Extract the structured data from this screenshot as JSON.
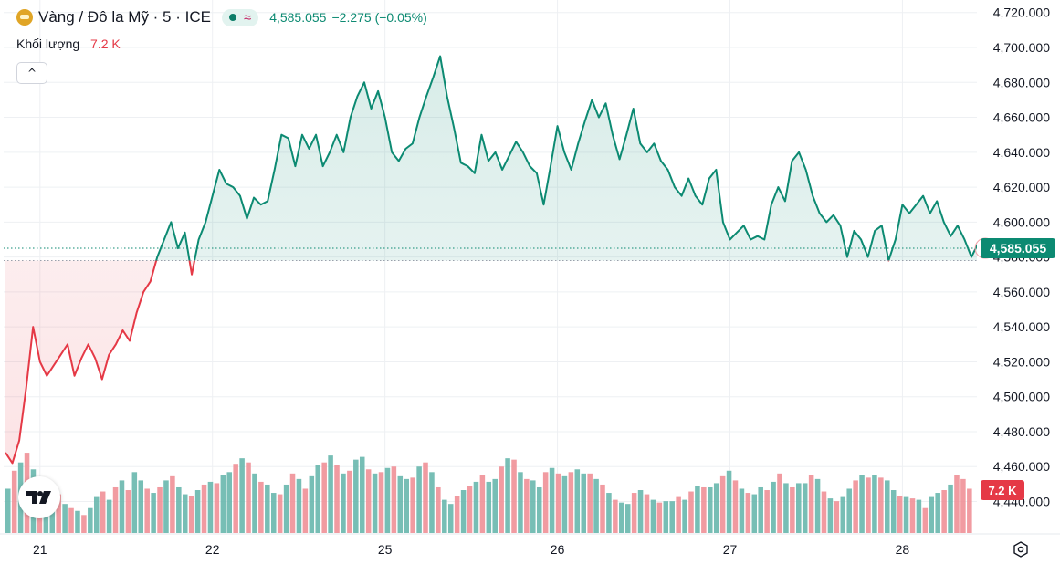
{
  "legend": {
    "symbol": "Vàng / Đô la Mỹ · 5 · ICE",
    "price": "4,585.055",
    "change": "−2.275 (−0.05%)",
    "volume_label": "Khối lượng",
    "volume_value": "7.2 K"
  },
  "colors": {
    "up": "#0c8a72",
    "down": "#e53946",
    "up_volume": "#5fb3a8",
    "down_volume": "#ee8a90",
    "accent": "#0c8a72"
  },
  "icons": {
    "symbol_logo": "gold-coin-icon",
    "market_status": "dot-icon",
    "wave": "approx-icon",
    "collapse": "chevron-up-icon",
    "brand": "tradingview-logo-icon",
    "settings": "settings-icon"
  },
  "chart_data": {
    "type": "line",
    "title": "Vàng / Đô la Mỹ · 5 · ICE",
    "xlabel": "",
    "ylabel": "",
    "x_ticks": [
      {
        "label": "21",
        "day": 0.2
      },
      {
        "label": "22",
        "day": 1.2
      },
      {
        "label": "25",
        "day": 2.2
      },
      {
        "label": "26",
        "day": 3.2
      },
      {
        "label": "27",
        "day": 4.2
      },
      {
        "label": "28",
        "day": 5.2
      }
    ],
    "x_range": [
      0,
      5.6
    ],
    "y_ticks": [
      "4,440.000",
      "4,460.000",
      "4,480.000",
      "4,500.000",
      "4,520.000",
      "4,540.000",
      "4,560.000",
      "4,580.000",
      "4,600.000",
      "4,620.000",
      "4,640.000",
      "4,660.000",
      "4,680.000",
      "4,700.000",
      "4,720.000"
    ],
    "y_tick_values": [
      4440,
      4460,
      4480,
      4500,
      4520,
      4540,
      4560,
      4580,
      4600,
      4620,
      4640,
      4660,
      4680,
      4700,
      4720
    ],
    "ylim": [
      4434,
      4723
    ],
    "baseline": 4578,
    "grid": true,
    "current_price": 4585.055,
    "current_price_label": "4,585.055",
    "volume_axis_label": "7.2 K",
    "series": [
      {
        "points": [
          [
            0,
            4468
          ],
          [
            0.04,
            4462
          ],
          [
            0.08,
            4475
          ],
          [
            0.12,
            4505
          ],
          [
            0.16,
            4540
          ],
          [
            0.2,
            4520
          ],
          [
            0.24,
            4512
          ],
          [
            0.28,
            4518
          ],
          [
            0.32,
            4524
          ],
          [
            0.36,
            4530
          ],
          [
            0.4,
            4512
          ],
          [
            0.44,
            4522
          ],
          [
            0.48,
            4530
          ],
          [
            0.52,
            4522
          ],
          [
            0.56,
            4510
          ],
          [
            0.6,
            4524
          ],
          [
            0.64,
            4530
          ],
          [
            0.68,
            4538
          ],
          [
            0.72,
            4532
          ],
          [
            0.76,
            4548
          ],
          [
            0.8,
            4560
          ],
          [
            0.84,
            4566
          ],
          [
            0.88,
            4580
          ],
          [
            0.92,
            4590
          ],
          [
            0.96,
            4600
          ],
          [
            1.0,
            4585
          ],
          [
            1.04,
            4594
          ],
          [
            1.08,
            4570
          ],
          [
            1.12,
            4590
          ],
          [
            1.16,
            4600
          ],
          [
            1.2,
            4615
          ],
          [
            1.24,
            4630
          ],
          [
            1.28,
            4622
          ],
          [
            1.32,
            4620
          ],
          [
            1.36,
            4615
          ],
          [
            1.4,
            4602
          ],
          [
            1.44,
            4614
          ],
          [
            1.48,
            4610
          ],
          [
            1.52,
            4612
          ],
          [
            1.56,
            4630
          ],
          [
            1.6,
            4650
          ],
          [
            1.64,
            4648
          ],
          [
            1.68,
            4632
          ],
          [
            1.72,
            4650
          ],
          [
            1.76,
            4642
          ],
          [
            1.8,
            4650
          ],
          [
            1.84,
            4632
          ],
          [
            1.88,
            4640
          ],
          [
            1.92,
            4650
          ],
          [
            1.96,
            4640
          ],
          [
            2.0,
            4660
          ],
          [
            2.04,
            4672
          ],
          [
            2.08,
            4680
          ],
          [
            2.12,
            4665
          ],
          [
            2.16,
            4675
          ],
          [
            2.2,
            4660
          ],
          [
            2.24,
            4640
          ],
          [
            2.28,
            4635
          ],
          [
            2.32,
            4642
          ],
          [
            2.36,
            4645
          ],
          [
            2.4,
            4660
          ],
          [
            2.44,
            4672
          ],
          [
            2.48,
            4683
          ],
          [
            2.52,
            4695
          ],
          [
            2.56,
            4672
          ],
          [
            2.6,
            4654
          ],
          [
            2.64,
            4634
          ],
          [
            2.68,
            4632
          ],
          [
            2.72,
            4628
          ],
          [
            2.76,
            4650
          ],
          [
            2.8,
            4635
          ],
          [
            2.84,
            4640
          ],
          [
            2.88,
            4630
          ],
          [
            2.92,
            4638
          ],
          [
            2.96,
            4646
          ],
          [
            3.0,
            4640
          ],
          [
            3.04,
            4632
          ],
          [
            3.08,
            4628
          ],
          [
            3.12,
            4610
          ],
          [
            3.16,
            4632
          ],
          [
            3.2,
            4655
          ],
          [
            3.24,
            4640
          ],
          [
            3.28,
            4630
          ],
          [
            3.32,
            4645
          ],
          [
            3.36,
            4658
          ],
          [
            3.4,
            4670
          ],
          [
            3.44,
            4660
          ],
          [
            3.48,
            4668
          ],
          [
            3.52,
            4650
          ],
          [
            3.56,
            4636
          ],
          [
            3.6,
            4650
          ],
          [
            3.64,
            4665
          ],
          [
            3.68,
            4645
          ],
          [
            3.72,
            4640
          ],
          [
            3.76,
            4645
          ],
          [
            3.8,
            4635
          ],
          [
            3.84,
            4630
          ],
          [
            3.88,
            4620
          ],
          [
            3.92,
            4615
          ],
          [
            3.96,
            4625
          ],
          [
            4.0,
            4615
          ],
          [
            4.04,
            4610
          ],
          [
            4.08,
            4625
          ],
          [
            4.12,
            4630
          ],
          [
            4.16,
            4600
          ],
          [
            4.2,
            4590
          ],
          [
            4.24,
            4594
          ],
          [
            4.28,
            4598
          ],
          [
            4.32,
            4590
          ],
          [
            4.36,
            4592
          ],
          [
            4.4,
            4590
          ],
          [
            4.44,
            4610
          ],
          [
            4.48,
            4620
          ],
          [
            4.52,
            4612
          ],
          [
            4.56,
            4635
          ],
          [
            4.6,
            4640
          ],
          [
            4.64,
            4630
          ],
          [
            4.68,
            4615
          ],
          [
            4.72,
            4605
          ],
          [
            4.76,
            4600
          ],
          [
            4.8,
            4604
          ],
          [
            4.84,
            4598
          ],
          [
            4.88,
            4580
          ],
          [
            4.92,
            4595
          ],
          [
            4.96,
            4590
          ],
          [
            5.0,
            4580
          ],
          [
            5.04,
            4595
          ],
          [
            5.08,
            4598
          ],
          [
            5.12,
            4578
          ],
          [
            5.16,
            4590
          ],
          [
            5.2,
            4610
          ],
          [
            5.24,
            4605
          ],
          [
            5.28,
            4610
          ],
          [
            5.32,
            4615
          ],
          [
            5.36,
            4605
          ],
          [
            5.4,
            4612
          ],
          [
            5.44,
            4600
          ],
          [
            5.48,
            4592
          ],
          [
            5.52,
            4598
          ],
          [
            5.56,
            4590
          ],
          [
            5.6,
            4580
          ],
          [
            5.64,
            4588
          ],
          [
            5.68,
            4585
          ]
        ]
      }
    ],
    "volume": {
      "ylim": [
        0,
        9.5
      ],
      "values": [
        3.2,
        4.5,
        5.1,
        5.8,
        4.6,
        3.9,
        3.1,
        3.6,
        2.8,
        2.1,
        1.8,
        1.6,
        1.3,
        1.8,
        2.6,
        3.0,
        2.4,
        3.3,
        3.8,
        3.1,
        4.4,
        3.8,
        3.2,
        2.9,
        3.3,
        3.8,
        4.1,
        3.3,
        2.8,
        2.7,
        3.1,
        3.5,
        3.7,
        3.6,
        4.2,
        4.4,
        5.0,
        5.4,
        5.1,
        4.3,
        3.7,
        3.5,
        2.9,
        2.8,
        3.5,
        4.3,
        3.9,
        3.2,
        4.1,
        4.9,
        5.1,
        5.6,
        4.9,
        4.3,
        4.5,
        5.3,
        5.5,
        4.6,
        4.3,
        4.4,
        4.7,
        4.8,
        4.1,
        3.9,
        4.0,
        4.8,
        5.1,
        4.4,
        3.3,
        2.4,
        2.1,
        2.7,
        3.1,
        3.4,
        3.7,
        4.2,
        3.7,
        3.9,
        4.8,
        5.4,
        5.3,
        4.4,
        3.9,
        3.8,
        3.3,
        4.4,
        4.7,
        4.3,
        4.1,
        4.4,
        4.6,
        4.3,
        4.3,
        3.9,
        3.5,
        2.9,
        2.4,
        2.2,
        2.1,
        2.9,
        3.1,
        2.8,
        2.4,
        2.2,
        2.3,
        2.3,
        2.6,
        2.4,
        3.0,
        3.4,
        3.3,
        3.3,
        3.6,
        4.1,
        4.5,
        3.8,
        3.2,
        2.9,
        2.8,
        3.3,
        3.1,
        3.7,
        4.3,
        3.6,
        3.3,
        3.6,
        3.6,
        4.2,
        3.9,
        3.0,
        2.5,
        2.3,
        2.6,
        3.2,
        3.8,
        4.2,
        4.0,
        4.2,
        4.0,
        3.8,
        3.1,
        2.7,
        2.6,
        2.5,
        2.4,
        1.8,
        2.6,
        2.9,
        3.1,
        3.5,
        4.2,
        3.9,
        3.2
      ],
      "up": [
        true,
        false,
        true,
        false,
        true,
        false,
        true,
        true,
        false,
        true,
        false,
        true,
        false,
        true,
        true,
        false,
        true,
        false,
        true,
        false,
        true,
        true,
        false,
        true,
        false,
        true,
        false,
        true,
        true,
        false,
        true,
        false,
        true,
        false,
        true,
        true,
        false,
        true,
        false,
        true,
        false,
        true,
        true,
        false,
        true,
        false,
        true,
        false,
        true,
        true,
        false,
        true,
        false,
        true,
        false,
        true,
        true,
        false,
        true,
        false,
        true,
        false,
        true,
        true,
        false,
        true,
        false,
        true,
        false,
        true,
        true,
        false,
        true,
        false,
        true,
        false,
        true,
        true,
        false,
        true,
        false,
        true,
        false,
        true,
        true,
        false,
        true,
        false,
        true,
        false,
        true,
        true,
        false,
        true,
        false,
        true,
        false,
        true,
        true,
        false,
        true,
        false,
        true,
        false,
        true,
        true,
        false,
        true,
        false,
        true,
        false,
        true,
        true,
        false,
        true,
        false,
        true,
        false,
        true,
        true,
        false,
        true,
        false,
        true,
        false,
        true,
        true,
        false,
        true,
        false,
        true,
        false,
        true,
        true,
        false,
        true,
        false,
        true,
        false,
        true,
        true,
        false,
        true,
        false,
        true,
        false,
        true,
        true,
        false,
        true
      ]
    }
  }
}
